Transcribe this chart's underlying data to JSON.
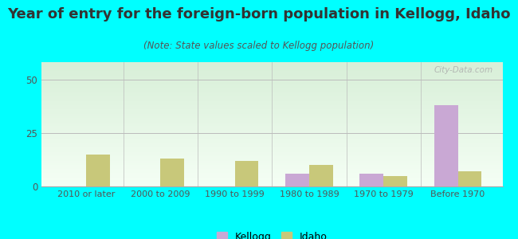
{
  "title": "Year of entry for the foreign-born population in Kellogg, Idaho",
  "subtitle": "(Note: State values scaled to Kellogg population)",
  "categories": [
    "2010 or later",
    "2000 to 2009",
    "1990 to 1999",
    "1980 to 1989",
    "1970 to 1979",
    "Before 1970"
  ],
  "kellogg_values": [
    0,
    0,
    0,
    6,
    6,
    38
  ],
  "idaho_values": [
    15,
    13,
    12,
    10,
    5,
    7
  ],
  "kellogg_color": "#c9a8d4",
  "idaho_color": "#c8c87a",
  "background_color": "#00ffff",
  "ylim": [
    0,
    58
  ],
  "yticks": [
    0,
    25,
    50
  ],
  "bar_width": 0.32,
  "title_fontsize": 13,
  "subtitle_fontsize": 8.5,
  "watermark": "City-Data.com"
}
